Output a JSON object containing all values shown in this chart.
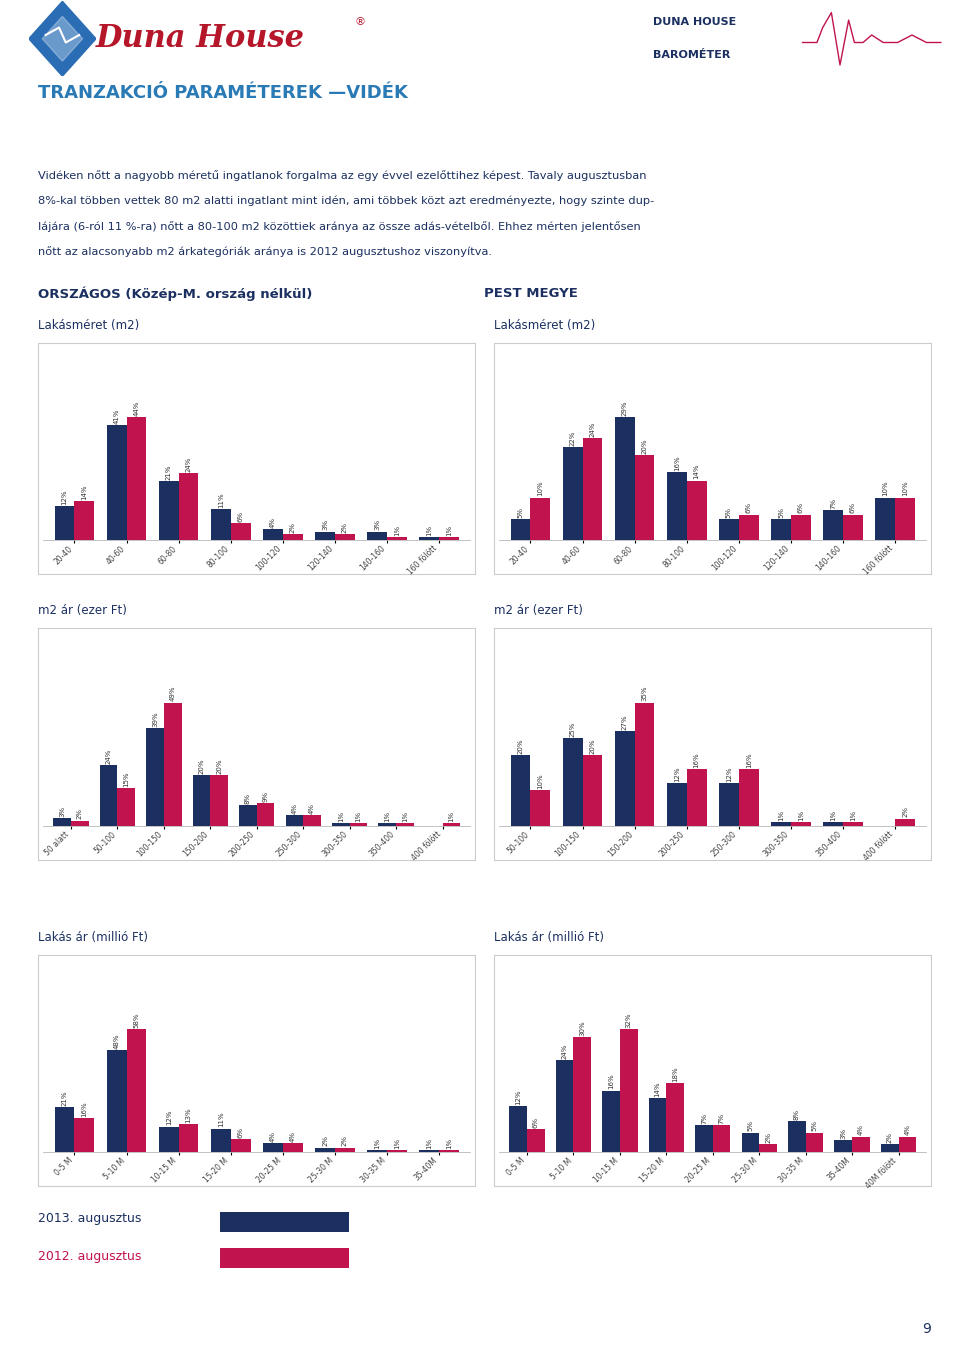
{
  "title": "TRANZAKCIÓ PARAMÉTEREK —VIDÉK",
  "subtitle_lines": [
    "Vidéken nőtt a nagyobb méretű ingatlanok forgalma az egy évvel ezelőttihez képest. Tavaly augusztusban",
    "8%-kal többen vettek 80 m2 alatti ingatlant mint idén, ami többek közt azt eredményezte, hogy szinte dup-",
    "lájára (6-ról 11 %-ra) nőtt a 80-100 m2 közöttiek aránya az össze adás-vételből. Ehhez mérten jelentősen",
    "nőtt az alacsonyabb m2 árkategóriák aránya is 2012 augusztushoz viszonyítva."
  ],
  "col1_title": "ORSZÁGOS (Közép-M. ország nélkül)",
  "col2_title": "PEST MEGYE",
  "color_2013": "#1b3060",
  "color_2012": "#c1134e",
  "legend_2013": "2013. augusztus",
  "legend_2012": "2012. augusztus",
  "charts": [
    {
      "title": "Lakásméret (m2)",
      "categories": [
        "20-40",
        "40-60",
        "60-80",
        "80-100",
        "100-120",
        "120-140",
        "140-160",
        "160 fölött"
      ],
      "values_2013": [
        12,
        41,
        21,
        11,
        4,
        3,
        3,
        1
      ],
      "values_2012": [
        14,
        44,
        24,
        6,
        2,
        2,
        1,
        1
      ]
    },
    {
      "title": "Lakásméret (m2)",
      "categories": [
        "20-40",
        "40-60",
        "60-80",
        "80-100",
        "100-120",
        "120-140",
        "140-160",
        "160 fölött"
      ],
      "values_2013": [
        5,
        22,
        29,
        16,
        5,
        5,
        7,
        10
      ],
      "values_2012": [
        10,
        24,
        20,
        14,
        6,
        6,
        6,
        10
      ]
    },
    {
      "title": "m2 ár (ezer Ft)",
      "categories": [
        "50 alatt",
        "50-100",
        "100-150",
        "150-200",
        "200-250",
        "250-300",
        "300-350",
        "350-400",
        "400 fölött"
      ],
      "values_2013": [
        3,
        24,
        39,
        20,
        8,
        4,
        1,
        1,
        0
      ],
      "values_2012": [
        2,
        15,
        49,
        20,
        9,
        4,
        1,
        1,
        1
      ]
    },
    {
      "title": "m2 ár (ezer Ft)",
      "categories": [
        "50-100",
        "100-150",
        "150-200",
        "200-250",
        "250-300",
        "300-350",
        "350-400",
        "400 fölött"
      ],
      "values_2013": [
        20,
        25,
        27,
        12,
        12,
        1,
        1,
        0
      ],
      "values_2012": [
        10,
        20,
        35,
        16,
        16,
        1,
        1,
        2
      ]
    },
    {
      "title": "Lakás ár (millió Ft)",
      "categories": [
        "0-5 M",
        "5-10 M",
        "10-15 M",
        "15-20 M",
        "20-25 M",
        "25-30 M",
        "30-35 M",
        "35-40M"
      ],
      "values_2013": [
        21,
        48,
        12,
        11,
        4,
        2,
        1,
        1
      ],
      "values_2012": [
        16,
        58,
        13,
        6,
        4,
        2,
        1,
        1
      ]
    },
    {
      "title": "Lakás ár (millió Ft)",
      "categories": [
        "0-5 M",
        "5-10 M",
        "10-15 M",
        "15-20 M",
        "20-25 M",
        "25-30 M",
        "30-35 M",
        "35-40M",
        "40M fölött"
      ],
      "values_2013": [
        12,
        24,
        16,
        14,
        7,
        5,
        8,
        3,
        2
      ],
      "values_2012": [
        6,
        30,
        32,
        18,
        7,
        2,
        5,
        4,
        4
      ]
    }
  ]
}
